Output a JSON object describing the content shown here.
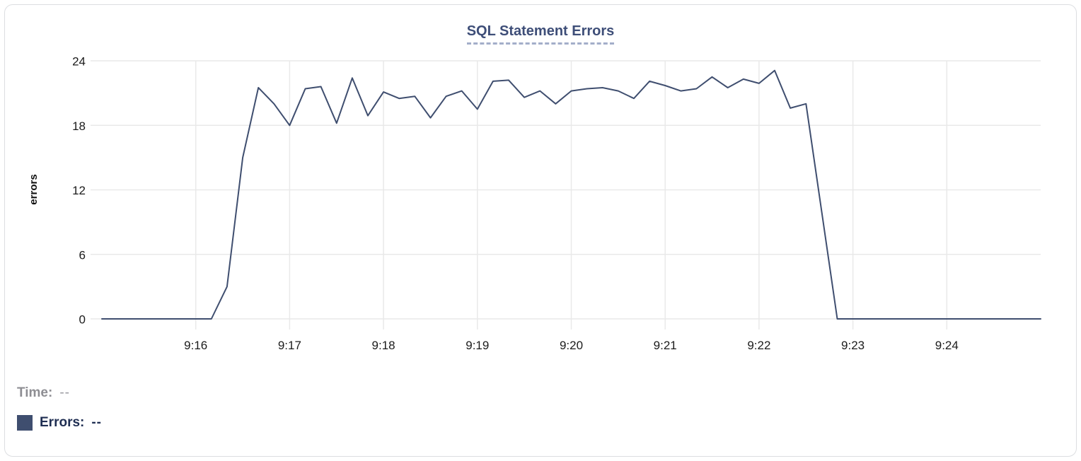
{
  "chart_data": {
    "type": "line",
    "title": "SQL Statement Errors",
    "ylabel": "errors",
    "xlabel": "",
    "grid": true,
    "legend_position": "none",
    "ylim": [
      0,
      24
    ],
    "y_ticks": [
      0,
      6,
      12,
      18,
      24
    ],
    "x_tick_labels": [
      "9:16",
      "9:17",
      "9:18",
      "9:19",
      "9:20",
      "9:21",
      "9:22",
      "9:23",
      "9:24"
    ],
    "x_range": [
      "9:15:00",
      "9:25:00"
    ],
    "interval_seconds": 10,
    "series": [
      {
        "name": "Errors",
        "color": "#3f4e6f",
        "x": [
          "9:15:00",
          "9:15:10",
          "9:15:20",
          "9:15:30",
          "9:15:40",
          "9:15:50",
          "9:16:00",
          "9:16:10",
          "9:16:20",
          "9:16:30",
          "9:16:40",
          "9:16:50",
          "9:17:00",
          "9:17:10",
          "9:17:20",
          "9:17:30",
          "9:17:40",
          "9:17:50",
          "9:18:00",
          "9:18:10",
          "9:18:20",
          "9:18:30",
          "9:18:40",
          "9:18:50",
          "9:19:00",
          "9:19:10",
          "9:19:20",
          "9:19:30",
          "9:19:40",
          "9:19:50",
          "9:20:00",
          "9:20:10",
          "9:20:20",
          "9:20:30",
          "9:20:40",
          "9:20:50",
          "9:21:00",
          "9:21:10",
          "9:21:20",
          "9:21:30",
          "9:21:40",
          "9:21:50",
          "9:22:00",
          "9:22:10",
          "9:22:20",
          "9:22:30",
          "9:22:40",
          "9:22:50",
          "9:23:00",
          "9:23:10",
          "9:23:20",
          "9:23:30",
          "9:23:40",
          "9:23:50",
          "9:24:00",
          "9:24:10",
          "9:24:20",
          "9:24:30",
          "9:24:40",
          "9:24:50",
          "9:25:00"
        ],
        "values": [
          0,
          0,
          0,
          0,
          0,
          0,
          0,
          0,
          3,
          15,
          21.5,
          20,
          18,
          21.4,
          21.6,
          18.2,
          22.4,
          18.9,
          21.1,
          20.5,
          20.7,
          18.7,
          20.7,
          21.2,
          19.5,
          22.1,
          22.2,
          20.6,
          21.2,
          20,
          21.2,
          21.4,
          21.5,
          21.2,
          20.5,
          22.1,
          21.7,
          21.2,
          21.4,
          22.5,
          21.5,
          22.3,
          21.9,
          23.1,
          19.6,
          20,
          10,
          0,
          0,
          0,
          0,
          0,
          0,
          0,
          0,
          0,
          0,
          0,
          0,
          0,
          0
        ]
      }
    ]
  },
  "readout": {
    "time_label": "Time:",
    "time_value": "--",
    "errors_label": "Errors:",
    "errors_value": "--"
  },
  "colors": {
    "line": "#3f4e6f",
    "title": "#3e4e78",
    "title_underline": "#a3aec9",
    "grid": "#e9e9e9",
    "tick_label": "#1b1b1b",
    "time_label": "#8e8e93",
    "errors_label": "#1f2e52",
    "card_border": "#dcdee1"
  }
}
